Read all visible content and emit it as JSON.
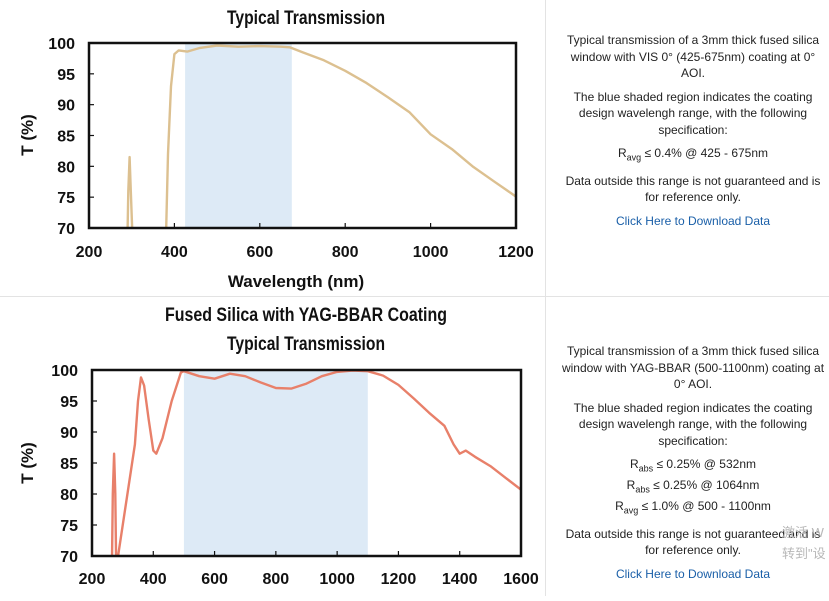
{
  "charts": [
    {
      "id": "vis",
      "title_lines": [
        "Typical Transmission"
      ],
      "chart_data": {
        "type": "line",
        "title": "Typical Transmission",
        "xlabel": "Wavelength (nm)",
        "ylabel": "T (%)",
        "xlim": [
          200,
          1200
        ],
        "ylim": [
          70,
          100
        ],
        "xticks": [
          200,
          400,
          600,
          800,
          1000,
          1200
        ],
        "yticks": [
          70,
          75,
          80,
          85,
          90,
          95,
          100
        ],
        "shaded_region": [
          425,
          675
        ],
        "line_color": "#dcc090",
        "shade_color": "#ddeaf6",
        "series": [
          {
            "x": [
              290,
              292,
              295,
              298,
              302,
              380,
              385,
              392,
              400,
              410,
              430,
              460,
              500,
              550,
              600,
              650,
              670,
              700,
              750,
              800,
              850,
              900,
              950,
              1000,
              1050,
              1100,
              1150,
              1200
            ],
            "y": [
              68,
              76,
              81.5,
              76,
              68,
              68,
              82,
              93,
              98.2,
              98.8,
              98.6,
              99.2,
              99.6,
              99.4,
              99.5,
              99.4,
              99.3,
              98.5,
              97.2,
              95.5,
              93.5,
              91.2,
              88.8,
              85.2,
              82.8,
              79.9,
              77.5,
              75.1
            ]
          }
        ]
      },
      "description": [
        "Typical transmission of a 3mm thick fused silica window with VIS 0° (425-675nm) coating at 0° AOI.",
        "The blue shaded region indicates the coating design wavelengh range, with the following specification:"
      ],
      "specs": [
        {
          "sym": "R",
          "sub": "avg",
          "text": "≤ 0.4% @ 425 - 675nm"
        }
      ],
      "disclaimer": "Data outside this range is not guaranteed and is for reference only.",
      "download": "Click Here to Download Data"
    },
    {
      "id": "yag",
      "title_lines": [
        "Fused Silica with YAG-BBAR Coating",
        "Typical Transmission"
      ],
      "chart_data": {
        "type": "line",
        "title": "Fused Silica with YAG-BBAR Coating Typical Transmission",
        "xlabel": "",
        "ylabel": "T (%)",
        "xlim": [
          200,
          1600
        ],
        "ylim": [
          70,
          100
        ],
        "xticks": [
          200,
          400,
          600,
          800,
          1000,
          1200,
          1400,
          1600
        ],
        "yticks": [
          70,
          75,
          80,
          85,
          90,
          95,
          100
        ],
        "shaded_region": [
          500,
          1100
        ],
        "line_color": "#e8806a",
        "shade_color": "#ddeaf6",
        "series": [
          {
            "x": [
              265,
              268,
              272,
              276,
              279,
              340,
              350,
              360,
              370,
              385,
              400,
              410,
              430,
              460,
              490,
              500,
              550,
              600,
              650,
              700,
              750,
              800,
              850,
              900,
              950,
              1000,
              1050,
              1100,
              1150,
              1200,
              1250,
              1300,
              1350,
              1380,
              1400,
              1420,
              1450,
              1500,
              1550,
              1600
            ],
            "y": [
              68,
              80,
              86.5,
              80,
              68,
              88,
              95,
              98.8,
              97.5,
              92,
              87,
              86.5,
              89,
              95,
              99.6,
              99.8,
              99,
              98.6,
              99.4,
              99,
              98,
              97.1,
              97,
              97.8,
              99,
              99.7,
              99.9,
              99.8,
              99.1,
              97.6,
              95.4,
              93.1,
              91,
              88,
              86.5,
              87,
              86,
              84.5,
              82.6,
              80.7
            ]
          }
        ]
      },
      "description": [
        "Typical transmission of a 3mm thick fused silica window with YAG-BBAR (500-1100nm) coating at 0° AOI.",
        "The blue shaded region indicates the coating design wavelengh range, with the following specification:"
      ],
      "specs": [
        {
          "sym": "R",
          "sub": "abs",
          "text": "≤ 0.25% @ 532nm"
        },
        {
          "sym": "R",
          "sub": "abs",
          "text": "≤ 0.25% @ 1064nm"
        },
        {
          "sym": "R",
          "sub": "avg",
          "text": "≤ 1.0% @ 500 - 1100nm"
        }
      ],
      "disclaimer": "Data outside this range is not guaranteed and is for reference only.",
      "download": "Click Here to Download Data"
    }
  ],
  "watermark": [
    "激活 W",
    "转到\"设"
  ]
}
